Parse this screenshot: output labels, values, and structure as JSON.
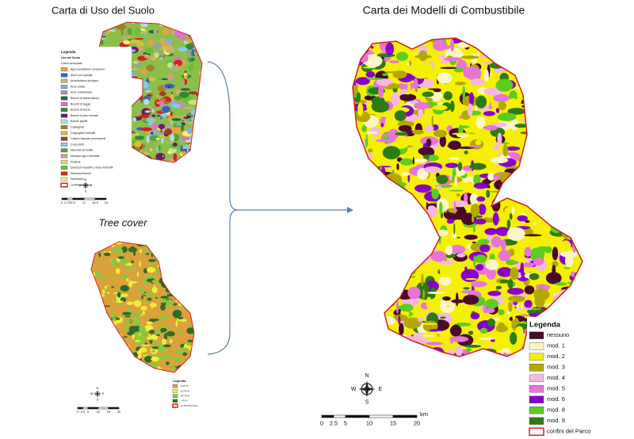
{
  "panels": {
    "land_use": {
      "title": "Carta di Uso del Suolo",
      "legend": {
        "title": "Legenda",
        "subtitle": "Uso del Suolo",
        "note": "Classi accorpate",
        "items": [
          {
            "label": "Agro-ecosistemi complessi",
            "color": "#e8a33c"
          },
          {
            "label": "Alvei con ripariali",
            "color": "#3b5fbf"
          },
          {
            "label": "Arboricoltura da legno",
            "color": "#c9b46a"
          },
          {
            "label": "Aree umide",
            "color": "#7fb3d5"
          },
          {
            "label": "Aree urbanizzate",
            "color": "#9e9e9e"
          },
          {
            "label": "Boschi di abete bianco",
            "color": "#1f6b3a"
          },
          {
            "label": "Boschi di faggio",
            "color": "#e36fd0"
          },
          {
            "label": "Boschi di leccio",
            "color": "#2e8b2e"
          },
          {
            "label": "Boschi di pino loricato",
            "color": "#6a1b6a"
          },
          {
            "label": "Boschi igrofili",
            "color": "#b8d8f0"
          },
          {
            "label": "Castagneti",
            "color": "#a0822c"
          },
          {
            "label": "Cespuglieti mesofili",
            "color": "#d6c23a"
          },
          {
            "label": "Colture legnose permanenti",
            "color": "#a33b1f"
          },
          {
            "label": "Corpi idrici",
            "color": "#8fc7e8"
          },
          {
            "label": "Macchia termofila",
            "color": "#5b9e3a"
          },
          {
            "label": "Mosaico agro-forestale",
            "color": "#c4a484"
          },
          {
            "label": "Praterie",
            "color": "#c8e08a"
          },
          {
            "label": "Querceti mesofili e meso-termofili",
            "color": "#6bbf3a"
          },
          {
            "label": "Rimboschimenti",
            "color": "#d42020"
          },
          {
            "label": "Seminativi",
            "color": "#f5f07a"
          },
          {
            "label": "confini del Parco",
            "color": "#e02020",
            "outline": true
          }
        ]
      },
      "compass": {
        "n": "N",
        "s": "S",
        "e": "E",
        "w": "W"
      },
      "scale": {
        "ticks": [
          0,
          2.75,
          5.5,
          11,
          16.5,
          22
        ]
      }
    },
    "tree_cover": {
      "title": "Tree cover",
      "legend": {
        "title": "Legenda",
        "items": [
          {
            "label": "0-10 %",
            "color": "#d9a23a"
          },
          {
            "label": "10-40 %",
            "color": "#f2ee3a"
          },
          {
            "label": "40-70 %",
            "color": "#8cc63f"
          },
          {
            "label": ">70 %",
            "color": "#2f6b2a"
          },
          {
            "label": "confini del Parco",
            "color": "#e02020",
            "outline": true
          }
        ]
      },
      "compass": {
        "n": "N",
        "s": "S",
        "e": "E",
        "w": "W"
      },
      "scale": {
        "ticks": [
          0,
          2.5,
          5,
          10,
          15,
          20
        ]
      }
    },
    "fuel_models": {
      "title": "Carta dei Modelli di Combustibile",
      "legend": {
        "title": "Legenda",
        "items": [
          {
            "label": "nessuno",
            "color": "#4a0a2a"
          },
          {
            "label": "mod. 1",
            "color": "#fbf7c4"
          },
          {
            "label": "mod. 2",
            "color": "#f5f000"
          },
          {
            "label": "mod. 3",
            "color": "#b3a800"
          },
          {
            "label": "mod. 4",
            "color": "#f7b8e0"
          },
          {
            "label": "mod. 5",
            "color": "#e874d8"
          },
          {
            "label": "mod. 6",
            "color": "#8a00c8"
          },
          {
            "label": "mod. 8",
            "color": "#5ccc1e"
          },
          {
            "label": "mod. 9",
            "color": "#2e7a14"
          },
          {
            "label": "confini del Parco",
            "color": "#e02020",
            "outline": true
          }
        ]
      },
      "compass": {
        "n": "N",
        "s": "S",
        "e": "E",
        "w": "W"
      },
      "scale": {
        "ticks": [
          0,
          2.5,
          5,
          10,
          15,
          20
        ],
        "unit": "km"
      }
    }
  }
}
